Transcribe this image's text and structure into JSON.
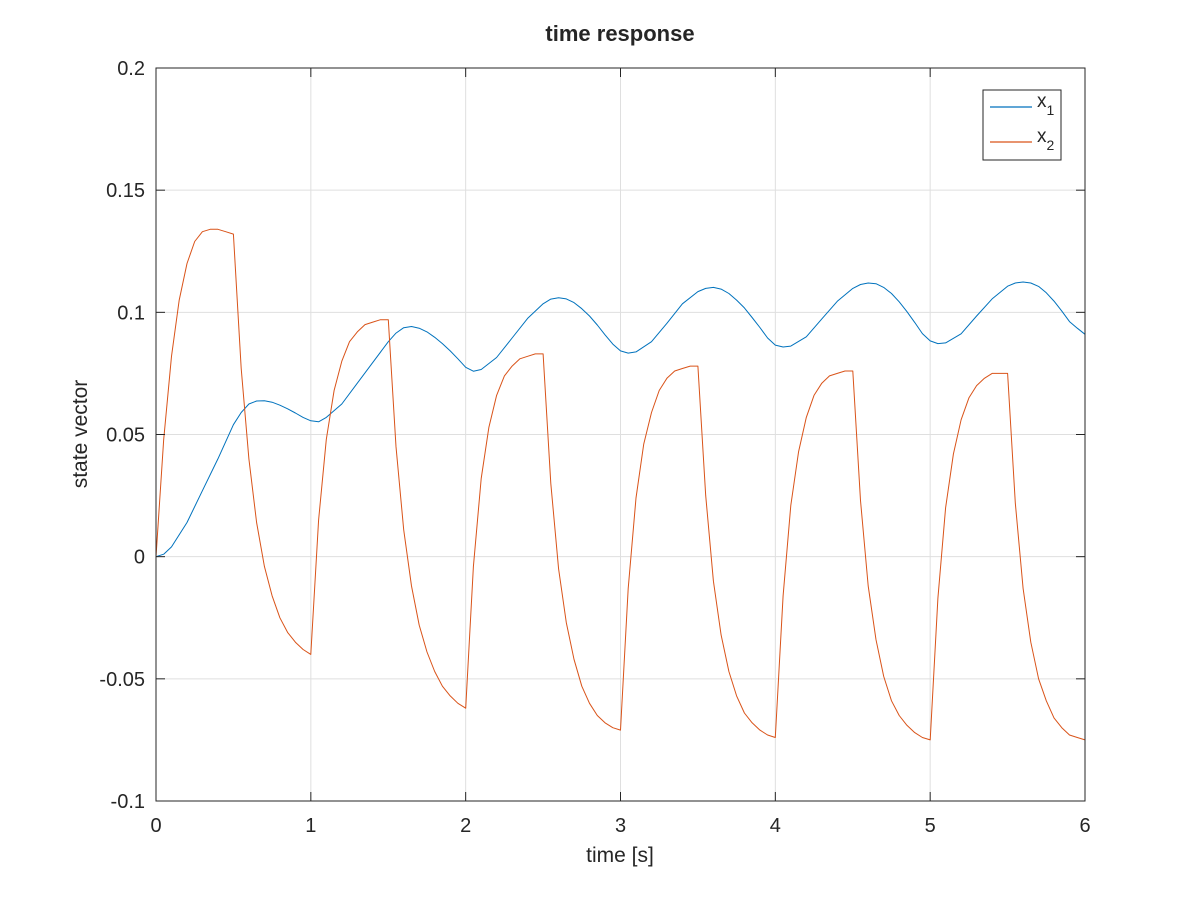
{
  "chart_data": {
    "type": "line",
    "title": "time response",
    "xlabel": "time [s]",
    "ylabel": "state vector",
    "xlim": [
      0,
      6
    ],
    "ylim": [
      -0.1,
      0.2
    ],
    "xticks": [
      0,
      1,
      2,
      3,
      4,
      5,
      6
    ],
    "xtick_labels": [
      "0",
      "1",
      "2",
      "3",
      "4",
      "5",
      "6"
    ],
    "yticks": [
      -0.1,
      -0.05,
      0,
      0.05,
      0.1,
      0.15,
      0.2
    ],
    "ytick_labels": [
      "-0.1",
      "-0.05",
      "0",
      "0.05",
      "0.1",
      "0.15",
      "0.2"
    ],
    "grid": true,
    "legend_position": "top-right",
    "series": [
      {
        "name": "x",
        "subscript": "1",
        "color": "#0072bd",
        "x": [
          0,
          0.05,
          0.1,
          0.2,
          0.3,
          0.4,
          0.5,
          0.55,
          0.6,
          0.65,
          0.7,
          0.75,
          0.8,
          0.85,
          0.9,
          0.95,
          1.0,
          1.05,
          1.1,
          1.2,
          1.3,
          1.4,
          1.5,
          1.55,
          1.6,
          1.65,
          1.7,
          1.75,
          1.8,
          1.85,
          1.9,
          1.95,
          2.0,
          2.05,
          2.1,
          2.2,
          2.3,
          2.4,
          2.5,
          2.55,
          2.6,
          2.65,
          2.7,
          2.75,
          2.8,
          2.85,
          2.9,
          2.95,
          3.0,
          3.05,
          3.1,
          3.2,
          3.3,
          3.4,
          3.5,
          3.55,
          3.6,
          3.65,
          3.7,
          3.75,
          3.8,
          3.85,
          3.9,
          3.95,
          4.0,
          4.05,
          4.1,
          4.2,
          4.3,
          4.4,
          4.5,
          4.55,
          4.6,
          4.65,
          4.7,
          4.75,
          4.8,
          4.85,
          4.9,
          4.95,
          5.0,
          5.05,
          5.1,
          5.2,
          5.3,
          5.4,
          5.5,
          5.55,
          5.6,
          5.65,
          5.7,
          5.75,
          5.8,
          5.85,
          5.9,
          5.95,
          6.0
        ],
        "y": [
          0,
          0.001,
          0.004,
          0.014,
          0.027,
          0.04,
          0.054,
          0.059,
          0.0625,
          0.0637,
          0.0638,
          0.0632,
          0.062,
          0.0605,
          0.0588,
          0.057,
          0.0556,
          0.0552,
          0.057,
          0.0625,
          0.071,
          0.0795,
          0.088,
          0.0915,
          0.0937,
          0.0942,
          0.0935,
          0.092,
          0.0898,
          0.0872,
          0.0842,
          0.081,
          0.0775,
          0.0759,
          0.0766,
          0.0815,
          0.0895,
          0.0975,
          0.1035,
          0.1054,
          0.106,
          0.1055,
          0.104,
          0.1015,
          0.0985,
          0.0948,
          0.0908,
          0.087,
          0.0842,
          0.0833,
          0.0838,
          0.088,
          0.0955,
          0.1035,
          0.1085,
          0.1098,
          0.1102,
          0.1095,
          0.1077,
          0.105,
          0.1018,
          0.0979,
          0.0938,
          0.0895,
          0.0866,
          0.0858,
          0.0862,
          0.09,
          0.0973,
          0.1045,
          0.1098,
          0.1114,
          0.112,
          0.1117,
          0.1102,
          0.1077,
          0.1043,
          0.1003,
          0.0959,
          0.0913,
          0.0883,
          0.0872,
          0.0875,
          0.0912,
          0.0985,
          0.1055,
          0.1107,
          0.112,
          0.1124,
          0.112,
          0.1106,
          0.108,
          0.1046,
          0.1005,
          0.0962,
          0.0935,
          0.091
        ]
      },
      {
        "name": "x",
        "subscript": "2",
        "color": "#d95319",
        "x": [
          0,
          0.05,
          0.1,
          0.15,
          0.2,
          0.25,
          0.3,
          0.35,
          0.4,
          0.45,
          0.5,
          0.5,
          0.55,
          0.6,
          0.65,
          0.7,
          0.75,
          0.8,
          0.85,
          0.9,
          0.95,
          1.0,
          1.0,
          1.05,
          1.1,
          1.15,
          1.2,
          1.25,
          1.3,
          1.35,
          1.4,
          1.45,
          1.5,
          1.5,
          1.55,
          1.6,
          1.65,
          1.7,
          1.75,
          1.8,
          1.85,
          1.9,
          1.95,
          2.0,
          2.0,
          2.05,
          2.1,
          2.15,
          2.2,
          2.25,
          2.3,
          2.35,
          2.4,
          2.45,
          2.5,
          2.5,
          2.55,
          2.6,
          2.65,
          2.7,
          2.75,
          2.8,
          2.85,
          2.9,
          2.95,
          3.0,
          3.0,
          3.05,
          3.1,
          3.15,
          3.2,
          3.25,
          3.3,
          3.35,
          3.4,
          3.45,
          3.5,
          3.5,
          3.55,
          3.6,
          3.65,
          3.7,
          3.75,
          3.8,
          3.85,
          3.9,
          3.95,
          4.0,
          4.0,
          4.05,
          4.1,
          4.15,
          4.2,
          4.25,
          4.3,
          4.35,
          4.4,
          4.45,
          4.5,
          4.5,
          4.55,
          4.6,
          4.65,
          4.7,
          4.75,
          4.8,
          4.85,
          4.9,
          4.95,
          5.0,
          5.0,
          5.05,
          5.1,
          5.15,
          5.2,
          5.25,
          5.3,
          5.35,
          5.4,
          5.45,
          5.5,
          5.5,
          5.55,
          5.6,
          5.65,
          5.7,
          5.75,
          5.8,
          5.85,
          5.9,
          5.95,
          6.0
        ],
        "y": [
          0,
          0.048,
          0.082,
          0.105,
          0.12,
          0.129,
          0.133,
          0.134,
          0.134,
          0.133,
          0.132,
          0.132,
          0.077,
          0.04,
          0.014,
          -0.004,
          -0.016,
          -0.025,
          -0.031,
          -0.035,
          -0.038,
          -0.04,
          -0.04,
          0.015,
          0.048,
          0.068,
          0.08,
          0.088,
          0.092,
          0.095,
          0.096,
          0.097,
          0.097,
          0.097,
          0.045,
          0.011,
          -0.012,
          -0.028,
          -0.039,
          -0.047,
          -0.053,
          -0.057,
          -0.06,
          -0.062,
          -0.062,
          -0.004,
          0.032,
          0.053,
          0.066,
          0.074,
          0.078,
          0.081,
          0.082,
          0.083,
          0.083,
          0.083,
          0.03,
          -0.005,
          -0.027,
          -0.042,
          -0.053,
          -0.06,
          -0.065,
          -0.068,
          -0.07,
          -0.071,
          -0.071,
          -0.013,
          0.024,
          0.046,
          0.059,
          0.068,
          0.073,
          0.076,
          0.077,
          0.078,
          0.078,
          0.078,
          0.025,
          -0.01,
          -0.032,
          -0.047,
          -0.057,
          -0.064,
          -0.068,
          -0.071,
          -0.073,
          -0.074,
          -0.074,
          -0.016,
          0.021,
          0.043,
          0.057,
          0.066,
          0.071,
          0.074,
          0.075,
          0.076,
          0.076,
          0.076,
          0.023,
          -0.012,
          -0.034,
          -0.049,
          -0.059,
          -0.065,
          -0.069,
          -0.072,
          -0.074,
          -0.075,
          -0.075,
          -0.017,
          0.02,
          0.042,
          0.056,
          0.065,
          0.07,
          0.073,
          0.075,
          0.075,
          0.075,
          0.075,
          0.022,
          -0.013,
          -0.035,
          -0.05,
          -0.059,
          -0.066,
          -0.07,
          -0.073,
          -0.074,
          -0.075
        ]
      }
    ]
  }
}
